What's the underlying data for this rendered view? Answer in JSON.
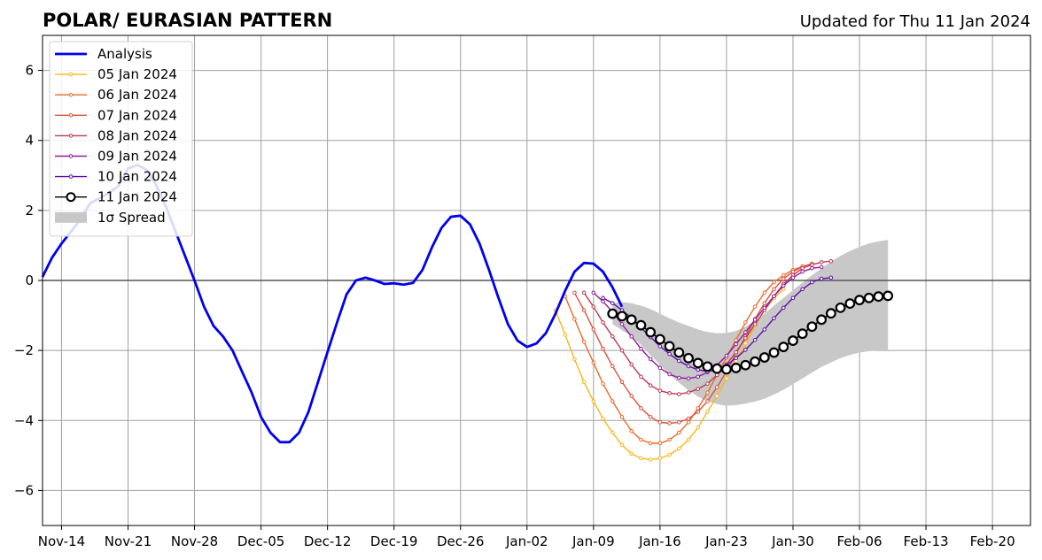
{
  "chart_data": {
    "type": "line",
    "title": "POLAR/ EURASIAN  PATTERN",
    "subtitle": "Updated for Thu 11 Jan 2024",
    "xlabel": "",
    "ylabel": "",
    "x_axis": {
      "tick_labels": [
        "Nov-14",
        "Nov-21",
        "Nov-28",
        "Dec-05",
        "Dec-12",
        "Dec-19",
        "Dec-26",
        "Jan-02",
        "Jan-09",
        "Jan-16",
        "Jan-23",
        "Jan-30",
        "Feb-06",
        "Feb-13",
        "Feb-20"
      ],
      "range": [
        "Nov-12",
        "Feb-24"
      ]
    },
    "ylim": [
      -7,
      7
    ],
    "yticks": [
      -6,
      -4,
      -2,
      0,
      2,
      4,
      6
    ],
    "grid": true,
    "legend_position": "top-left",
    "legend": [
      "Analysis",
      "05 Jan 2024",
      "06 Jan 2024",
      "07 Jan 2024",
      "08 Jan 2024",
      "09 Jan 2024",
      "10 Jan 2024",
      "11 Jan 2024",
      "1σ Spread"
    ],
    "analysis": {
      "name": "Analysis",
      "color": "#0000ee",
      "x_start": "Nov-12",
      "step_days": 1,
      "values": [
        0.1,
        0.65,
        1.05,
        1.4,
        1.75,
        2.2,
        2.35,
        2.5,
        2.7,
        3.2,
        3.3,
        3.15,
        2.7,
        2.1,
        1.4,
        0.7,
        0.0,
        -0.75,
        -1.3,
        -1.6,
        -2.0,
        -2.6,
        -3.2,
        -3.9,
        -4.35,
        -4.62,
        -4.62,
        -4.35,
        -3.75,
        -2.9,
        -2.05,
        -1.2,
        -0.4,
        0.0,
        0.08,
        0.0,
        -0.1,
        -0.08,
        -0.12,
        -0.07,
        0.3,
        0.95,
        1.5,
        1.82,
        1.85,
        1.6,
        1.05,
        0.3,
        -0.5,
        -1.25,
        -1.72,
        -1.9,
        -1.8,
        -1.5,
        -0.95,
        -0.3,
        0.25,
        0.5,
        0.48,
        0.25,
        -0.2,
        -0.75
      ]
    },
    "forecasts": [
      {
        "name": "05 Jan 2024",
        "color": "#fbb61a",
        "x_start": "Jan-05",
        "values": [
          -0.85,
          -1.55,
          -2.25,
          -2.9,
          -3.45,
          -3.95,
          -4.35,
          -4.7,
          -4.95,
          -5.08,
          -5.12,
          -5.08,
          -4.98,
          -4.8,
          -4.55,
          -4.2,
          -3.75,
          -3.3,
          -2.8,
          -2.3,
          -1.8,
          -1.3,
          -0.85,
          -0.5,
          -0.25
        ]
      },
      {
        "name": "06 Jan 2024",
        "color": "#ed6925",
        "x_start": "Jan-06",
        "values": [
          -0.45,
          -1.1,
          -1.75,
          -2.35,
          -2.95,
          -3.45,
          -3.9,
          -4.3,
          -4.55,
          -4.65,
          -4.65,
          -4.55,
          -4.35,
          -4.05,
          -3.65,
          -3.2,
          -2.7,
          -2.2,
          -1.7,
          -1.2,
          -0.75,
          -0.35,
          -0.05,
          0.15,
          0.3,
          0.4
        ]
      },
      {
        "name": "07 Jan 2024",
        "color": "#dd513a",
        "x_start": "Jan-07",
        "values": [
          -0.35,
          -0.85,
          -1.4,
          -1.95,
          -2.45,
          -2.9,
          -3.3,
          -3.65,
          -3.9,
          -4.05,
          -4.08,
          -4.05,
          -3.95,
          -3.75,
          -3.45,
          -3.05,
          -2.6,
          -2.1,
          -1.6,
          -1.1,
          -0.65,
          -0.25,
          0.05,
          0.25,
          0.4,
          0.48
        ]
      },
      {
        "name": "08 Jan 2024",
        "color": "#bc3754",
        "x_start": "Jan-08",
        "values": [
          -0.35,
          -0.75,
          -1.2,
          -1.6,
          -2.0,
          -2.4,
          -2.75,
          -3.0,
          -3.15,
          -3.22,
          -3.25,
          -3.2,
          -3.1,
          -2.95,
          -2.7,
          -2.4,
          -2.05,
          -1.65,
          -1.25,
          -0.85,
          -0.45,
          -0.1,
          0.15,
          0.35,
          0.45,
          0.52,
          0.55
        ]
      },
      {
        "name": "09 Jan 2024",
        "color": "#8f1d9b",
        "x_start": "Jan-09",
        "values": [
          -0.35,
          -0.6,
          -0.9,
          -1.25,
          -1.6,
          -1.95,
          -2.25,
          -2.5,
          -2.68,
          -2.78,
          -2.8,
          -2.75,
          -2.62,
          -2.42,
          -2.15,
          -1.82,
          -1.48,
          -1.12,
          -0.78,
          -0.45,
          -0.15,
          0.08,
          0.25,
          0.35,
          0.38
        ]
      },
      {
        "name": "10 Jan 2024",
        "color": "#5b0fa6",
        "x_start": "Jan-10",
        "values": [
          -0.5,
          -0.65,
          -0.85,
          -1.08,
          -1.35,
          -1.62,
          -1.88,
          -2.1,
          -2.3,
          -2.45,
          -2.55,
          -2.6,
          -2.55,
          -2.42,
          -2.22,
          -1.98,
          -1.7,
          -1.4,
          -1.08,
          -0.78,
          -0.5,
          -0.25,
          -0.05,
          0.05,
          0.08
        ]
      },
      {
        "name": "11 Jan 2024",
        "color": "#000000",
        "x_start": "Jan-11",
        "values": [
          -0.95,
          -1.02,
          -1.12,
          -1.28,
          -1.48,
          -1.68,
          -1.88,
          -2.06,
          -2.22,
          -2.36,
          -2.46,
          -2.52,
          -2.54,
          -2.5,
          -2.42,
          -2.32,
          -2.2,
          -2.06,
          -1.9,
          -1.72,
          -1.52,
          -1.32,
          -1.12,
          -0.94,
          -0.78,
          -0.66,
          -0.56,
          -0.5,
          -0.46,
          -0.44
        ]
      }
    ],
    "spread": {
      "name": "1σ Spread",
      "color": "#c8c8c8",
      "x_start": "Jan-11",
      "upper": [
        -0.65,
        -0.62,
        -0.65,
        -0.72,
        -0.82,
        -0.95,
        -1.08,
        -1.2,
        -1.3,
        -1.4,
        -1.47,
        -1.51,
        -1.5,
        -1.44,
        -1.32,
        -1.15,
        -0.95,
        -0.72,
        -0.5,
        -0.28,
        -0.06,
        0.15,
        0.35,
        0.54,
        0.7,
        0.84,
        0.96,
        1.06,
        1.12,
        1.16
      ],
      "lower": [
        -1.25,
        -1.42,
        -1.6,
        -1.84,
        -2.14,
        -2.41,
        -2.68,
        -2.92,
        -3.14,
        -3.32,
        -3.45,
        -3.53,
        -3.58,
        -3.56,
        -3.52,
        -3.46,
        -3.38,
        -3.26,
        -3.12,
        -2.96,
        -2.8,
        -2.63,
        -2.47,
        -2.34,
        -2.22,
        -2.13,
        -2.06,
        -2.02,
        -2.0,
        -2.0
      ]
    },
    "zero_line_color": "#555555"
  }
}
